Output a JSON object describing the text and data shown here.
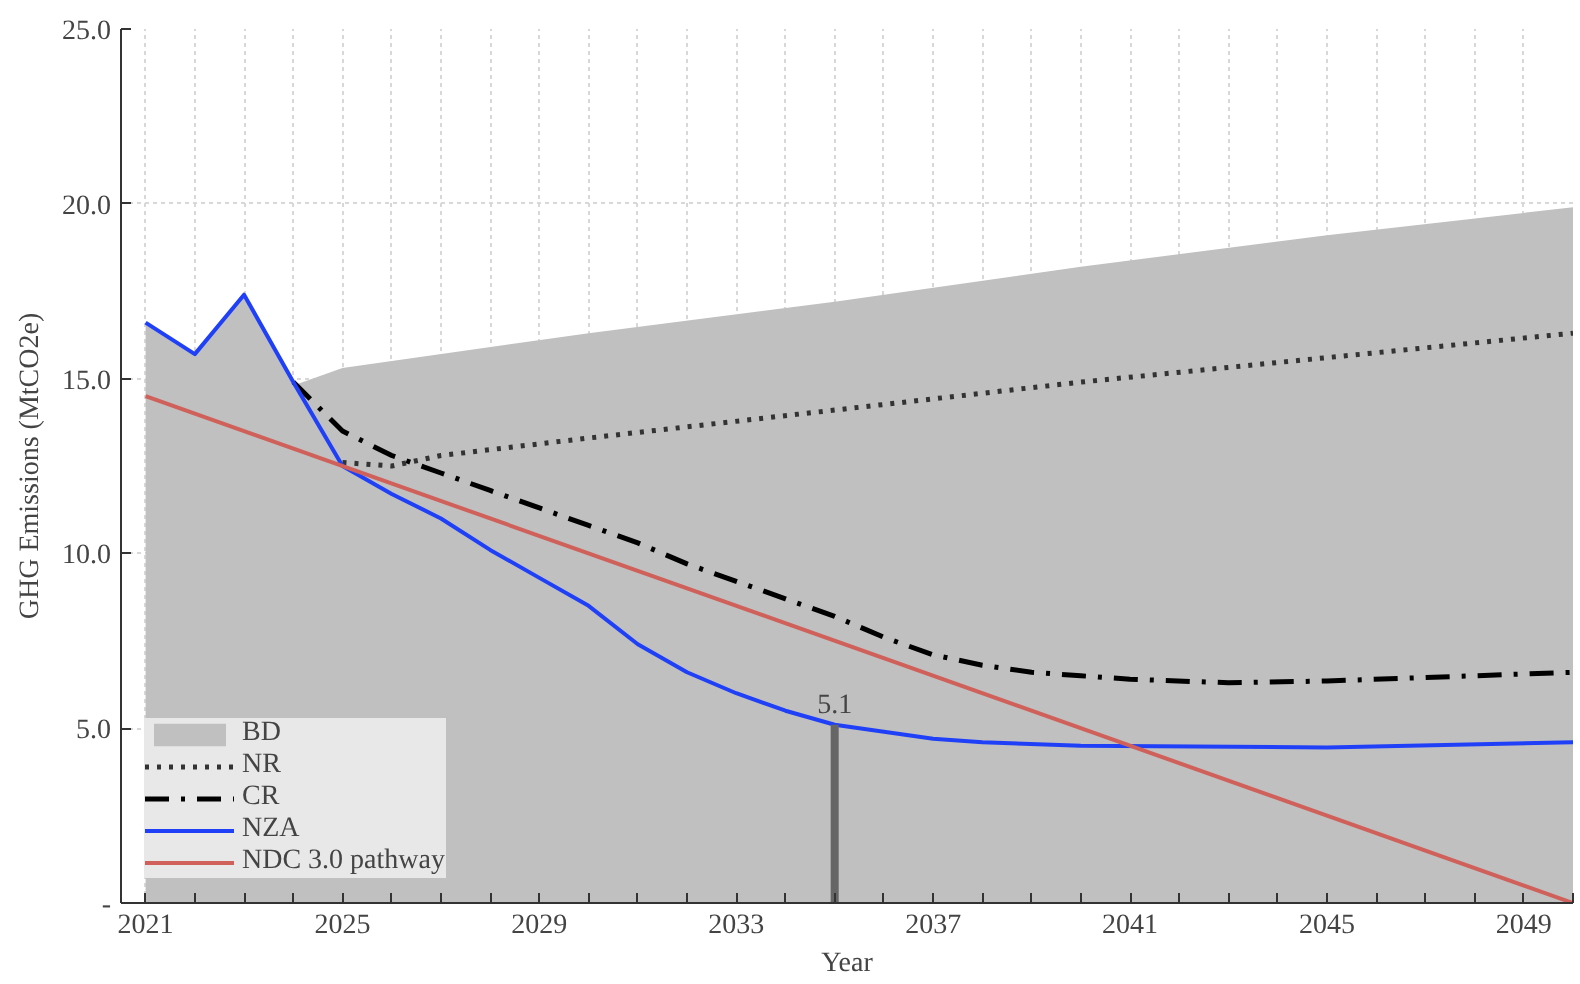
{
  "chart_data": {
    "type": "line",
    "xlabel": "Year",
    "ylabel": "GHG Emissions (MtCO2e)",
    "xlim": [
      2020.5,
      2050
    ],
    "ylim": [
      0,
      25
    ],
    "xticks": [
      2021,
      {
        "value": 2022,
        "label": null
      },
      {
        "value": 2023,
        "label": null
      },
      {
        "value": 2024,
        "label": null
      },
      2025,
      {
        "value": 2026,
        "label": null
      },
      {
        "value": 2027,
        "label": null
      },
      {
        "value": 2028,
        "label": null
      },
      2029,
      {
        "value": 2030,
        "label": null
      },
      {
        "value": 2031,
        "label": null
      },
      {
        "value": 2032,
        "label": null
      },
      2033,
      {
        "value": 2034,
        "label": null
      },
      {
        "value": 2035,
        "label": null
      },
      {
        "value": 2036,
        "label": null
      },
      2037,
      {
        "value": 2038,
        "label": null
      },
      {
        "value": 2039,
        "label": null
      },
      {
        "value": 2040,
        "label": null
      },
      2041,
      {
        "value": 2042,
        "label": null
      },
      {
        "value": 2043,
        "label": null
      },
      {
        "value": 2044,
        "label": null
      },
      2045,
      {
        "value": 2046,
        "label": null
      },
      {
        "value": 2047,
        "label": null
      },
      {
        "value": 2048,
        "label": null
      },
      2049,
      {
        "value": 2050,
        "label": null
      }
    ],
    "yticks": [
      {
        "value": 0,
        "label": "-"
      },
      {
        "value": 5,
        "label": "5.0"
      },
      {
        "value": 10,
        "label": "10.0"
      },
      {
        "value": 15,
        "label": "15.0"
      },
      {
        "value": 20,
        "label": "20.0"
      },
      {
        "value": 25,
        "label": "25.0"
      }
    ],
    "grid": true,
    "legend": "bottom left",
    "marker": "none",
    "series": [
      {
        "name": "BD",
        "type": "area",
        "color": "#c0c0c0",
        "x": [
          2021,
          2022,
          2023,
          2024,
          2025,
          2030,
          2035,
          2040,
          2045,
          2050
        ],
        "values": [
          16.6,
          15.7,
          17.4,
          14.8,
          15.3,
          16.3,
          17.2,
          18.2,
          19.1,
          19.9
        ]
      },
      {
        "name": "NR",
        "line_style": "dotted",
        "color": "#333333",
        "x": [
          2025,
          2026,
          2027,
          2030,
          2035,
          2040,
          2045,
          2050
        ],
        "values": [
          12.6,
          12.5,
          12.8,
          13.3,
          14.1,
          14.9,
          15.6,
          16.3
        ]
      },
      {
        "name": "CR",
        "line_style": "dashdot",
        "color": "#000000",
        "x": [
          2024,
          2025,
          2026,
          2027,
          2028,
          2029,
          2030,
          2031,
          2032,
          2033,
          2034,
          2035,
          2036,
          2037,
          2038,
          2039,
          2040,
          2041,
          2043,
          2045,
          2047,
          2050
        ],
        "values": [
          14.9,
          13.5,
          12.8,
          12.3,
          11.8,
          11.3,
          10.8,
          10.3,
          9.7,
          9.2,
          8.7,
          8.2,
          7.6,
          7.1,
          6.8,
          6.6,
          6.5,
          6.4,
          6.3,
          6.35,
          6.45,
          6.6
        ]
      },
      {
        "name": "NZA",
        "line_style": "solid",
        "color": "#2040f8",
        "x": [
          2021,
          2022,
          2023,
          2024,
          2025,
          2026,
          2027,
          2028,
          2029,
          2030,
          2031,
          2032,
          2033,
          2034,
          2035,
          2036,
          2037,
          2038,
          2040,
          2045,
          2050
        ],
        "values": [
          16.6,
          15.7,
          17.4,
          14.9,
          12.5,
          11.7,
          11.0,
          10.1,
          9.3,
          8.5,
          7.4,
          6.6,
          6.0,
          5.5,
          5.1,
          4.9,
          4.7,
          4.6,
          4.5,
          4.45,
          4.6
        ]
      },
      {
        "name": "NDC 3.0 pathway",
        "line_style": "solid",
        "color": "#d0605a",
        "x": [
          2021,
          2050
        ],
        "values": [
          14.5,
          0
        ]
      }
    ],
    "annotations": [
      {
        "text": "5.1",
        "x": 2035,
        "y": 5.1
      }
    ]
  }
}
